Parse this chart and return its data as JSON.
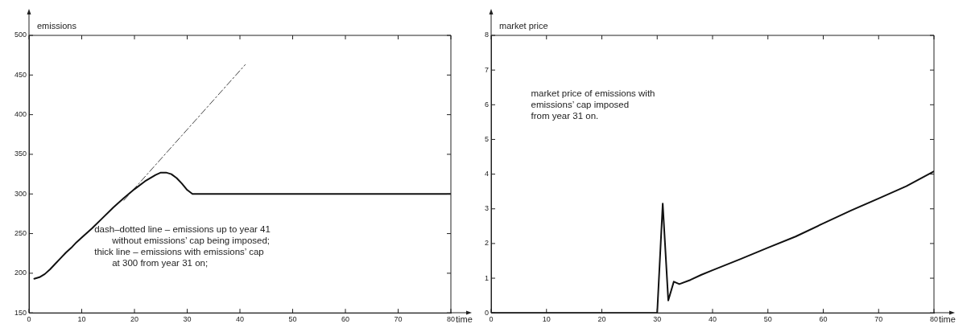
{
  "chart_data": [
    {
      "type": "line",
      "ylabel": "emissions",
      "xlabel": "time",
      "xlim": [
        0,
        80
      ],
      "ylim": [
        150,
        500
      ],
      "xticks": [
        0,
        10,
        20,
        30,
        40,
        50,
        60,
        70,
        80
      ],
      "yticks": [
        150,
        200,
        250,
        300,
        350,
        400,
        450,
        500
      ],
      "grid": false,
      "legend": false,
      "marker": "none",
      "series": [
        {
          "color": "#111111",
          "line_style": "solid",
          "x": [
            1,
            2,
            3,
            4,
            5,
            6,
            7,
            8,
            9,
            10,
            12,
            14,
            16,
            18,
            20,
            22,
            24,
            25,
            26,
            27,
            28,
            29,
            30,
            31,
            35,
            40,
            50,
            60,
            70,
            80
          ],
          "values": [
            193,
            195,
            199,
            205,
            212,
            219,
            226,
            232,
            239,
            245,
            257,
            270,
            283,
            295,
            306,
            316,
            324,
            327,
            327,
            325,
            320,
            313,
            305,
            300,
            300,
            300,
            300,
            300,
            300,
            300
          ]
        },
        {
          "color": "#444444",
          "line_style": "dashed",
          "x": [
            18,
            41
          ],
          "values": [
            292,
            463
          ]
        }
      ],
      "annotations": [
        "dash–dotted line – emissions up to year 41\nwithout emissions’ cap being imposed;",
        "thick line – emissions with emissions’ cap\nat 300 from year 31 on;"
      ]
    },
    {
      "type": "line",
      "ylabel": "market price",
      "xlabel": "time",
      "xlim": [
        0,
        80
      ],
      "ylim": [
        0,
        8
      ],
      "xticks": [
        0,
        10,
        20,
        30,
        40,
        50,
        60,
        70,
        80
      ],
      "yticks": [
        0,
        1,
        2,
        3,
        4,
        5,
        6,
        7,
        8
      ],
      "grid": false,
      "legend": false,
      "marker": "none",
      "series": [
        {
          "color": "#111111",
          "line_style": "solid",
          "x": [
            0,
            30,
            31,
            32,
            33,
            34,
            36,
            38,
            40,
            45,
            50,
            55,
            60,
            65,
            70,
            75,
            80
          ],
          "values": [
            0,
            0,
            3.15,
            0.36,
            0.9,
            0.83,
            0.95,
            1.1,
            1.23,
            1.55,
            1.88,
            2.2,
            2.58,
            2.95,
            3.3,
            3.65,
            4.08
          ]
        }
      ],
      "annotations": [
        "market price of emissions with\nemissions’ cap imposed\nfrom year 31 on."
      ]
    }
  ]
}
